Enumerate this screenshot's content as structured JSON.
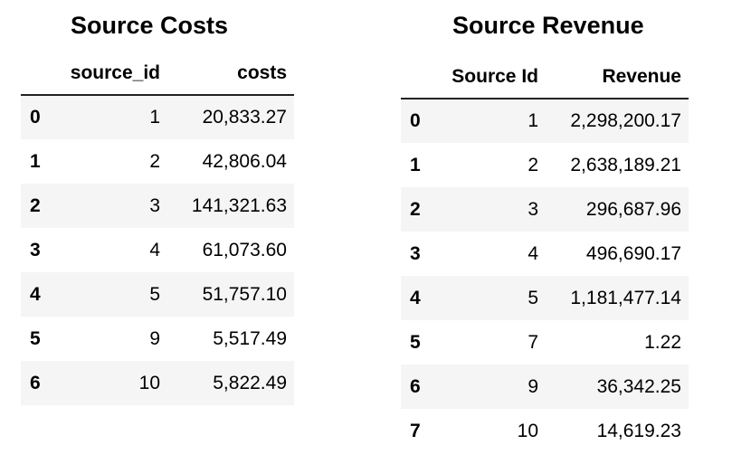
{
  "costs": {
    "title": "Source Costs",
    "columns": [
      "",
      "source_id",
      "costs"
    ],
    "rows": [
      {
        "index": "0",
        "source_id": "1",
        "costs": "20,833.27"
      },
      {
        "index": "1",
        "source_id": "2",
        "costs": "42,806.04"
      },
      {
        "index": "2",
        "source_id": "3",
        "costs": "141,321.63"
      },
      {
        "index": "3",
        "source_id": "4",
        "costs": "61,073.60"
      },
      {
        "index": "4",
        "source_id": "5",
        "costs": "51,757.10"
      },
      {
        "index": "5",
        "source_id": "9",
        "costs": "5,517.49"
      },
      {
        "index": "6",
        "source_id": "10",
        "costs": "5,822.49"
      }
    ]
  },
  "revenue": {
    "title": "Source Revenue",
    "columns": [
      "",
      "Source Id",
      "Revenue"
    ],
    "rows": [
      {
        "index": "0",
        "source_id": "1",
        "revenue": "2,298,200.17"
      },
      {
        "index": "1",
        "source_id": "2",
        "revenue": "2,638,189.21"
      },
      {
        "index": "2",
        "source_id": "3",
        "revenue": "296,687.96"
      },
      {
        "index": "3",
        "source_id": "4",
        "revenue": "496,690.17"
      },
      {
        "index": "4",
        "source_id": "5",
        "revenue": "1,181,477.14"
      },
      {
        "index": "5",
        "source_id": "7",
        "revenue": "1.22"
      },
      {
        "index": "6",
        "source_id": "9",
        "revenue": "36,342.25"
      },
      {
        "index": "7",
        "source_id": "10",
        "revenue": "14,619.23"
      }
    ]
  }
}
